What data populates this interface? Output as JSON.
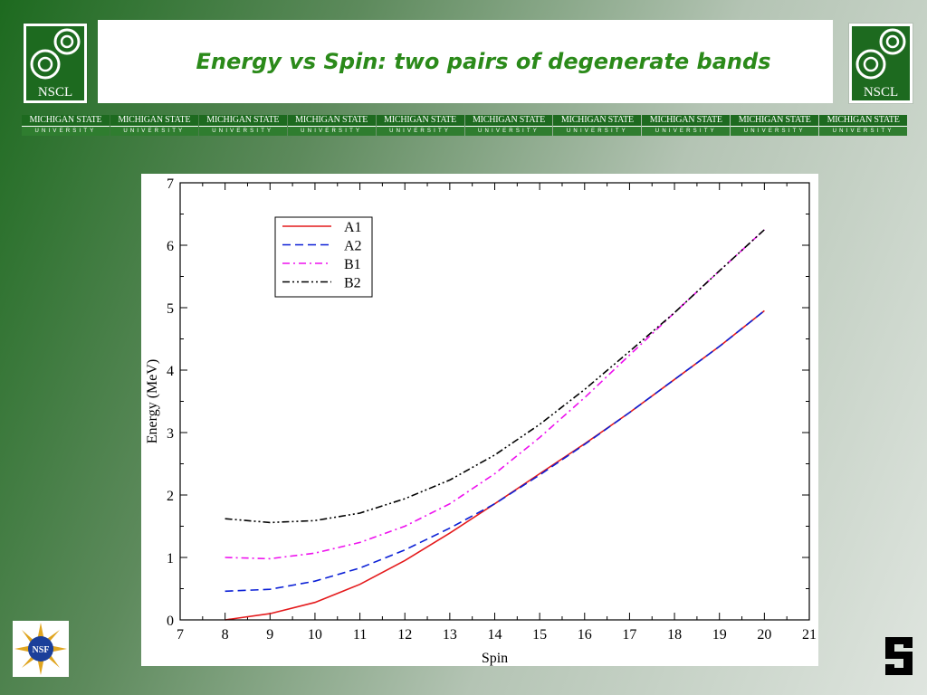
{
  "header": {
    "title": "Energy vs Spin: two pairs of degenerate bands",
    "logo_text": "NSCL",
    "banner": {
      "top_text": "MICHIGAN STATE",
      "bottom_text": "UNIVERSITY",
      "repeat": 10
    },
    "nsf_logo_text": "NSF"
  },
  "colors": {
    "green": "#1d6a1f",
    "A1": "#e41a1c",
    "A2": "#0a1fd6",
    "B1": "#ee11ee",
    "B2": "#000000"
  },
  "chart_data": {
    "type": "line",
    "title": "",
    "xlabel": "Spin",
    "ylabel": "Energy (MeV)",
    "xlim": [
      7,
      21
    ],
    "ylim": [
      0,
      7
    ],
    "xticks": [
      7,
      8,
      9,
      10,
      11,
      12,
      13,
      14,
      15,
      16,
      17,
      18,
      19,
      20,
      21
    ],
    "yticks": [
      0,
      1,
      2,
      3,
      4,
      5,
      6,
      7
    ],
    "legend_position": "top-left",
    "x": [
      8,
      9,
      10,
      11,
      12,
      13,
      14,
      15,
      16,
      17,
      18,
      19,
      20
    ],
    "series": [
      {
        "name": "A1",
        "style": "solid",
        "values": [
          0.0,
          0.1,
          0.28,
          0.57,
          0.95,
          1.39,
          1.86,
          2.34,
          2.82,
          3.32,
          3.85,
          4.38,
          4.95
        ]
      },
      {
        "name": "A2",
        "style": "dashed",
        "values": [
          0.46,
          0.49,
          0.62,
          0.83,
          1.12,
          1.47,
          1.86,
          2.32,
          2.81,
          3.32,
          3.85,
          4.38,
          4.95
        ]
      },
      {
        "name": "B1",
        "style": "dash-dot",
        "values": [
          1.0,
          0.98,
          1.07,
          1.24,
          1.5,
          1.86,
          2.34,
          2.92,
          3.56,
          4.24,
          4.92,
          5.59,
          6.25
        ]
      },
      {
        "name": "B2",
        "style": "dash-dot-dot",
        "values": [
          1.62,
          1.56,
          1.59,
          1.71,
          1.94,
          2.24,
          2.64,
          3.13,
          3.69,
          4.3,
          4.92,
          5.59,
          6.25
        ]
      }
    ]
  }
}
